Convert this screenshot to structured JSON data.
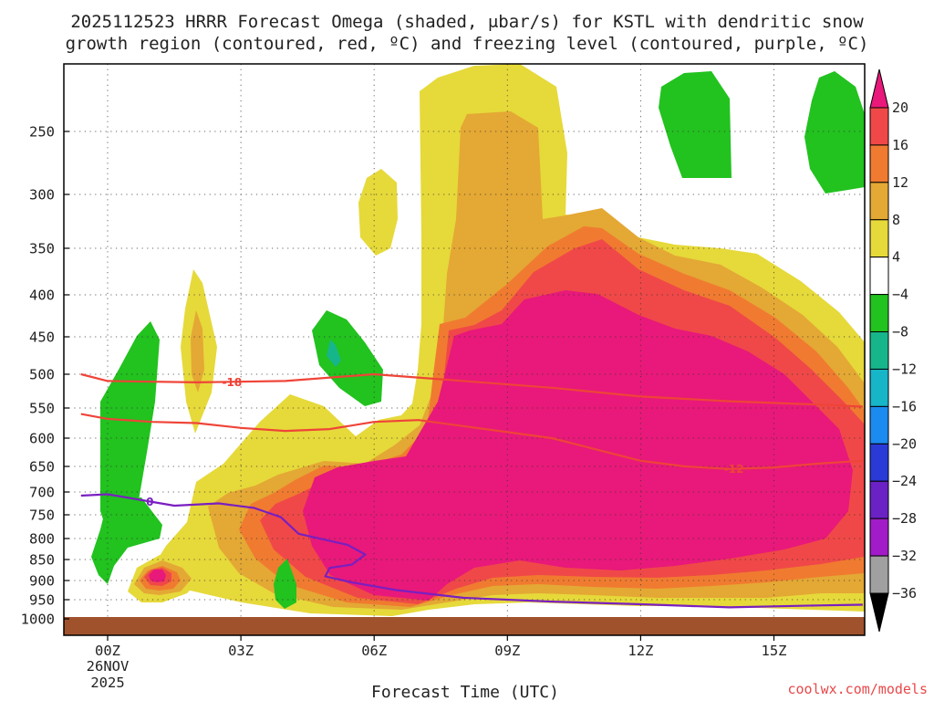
{
  "chart_data": {
    "type": "heatmap",
    "title_line1": "2025112523 HRRR Forecast Omega (shaded, μbar/s) for KSTL with dendritic snow",
    "title_line2": "growth region (contoured, red, ºC) and freezing level (contoured, purple, ºC)",
    "xlabel": "Forecast Time (UTC)",
    "ylabel": "",
    "x_ticks": [
      "00Z",
      "03Z",
      "06Z",
      "09Z",
      "12Z",
      "15Z"
    ],
    "x_tick_hours": [
      0,
      3,
      6,
      9,
      12,
      15
    ],
    "x_date_line1": "26NOV",
    "x_date_line2": "2025",
    "xlim_hours": [
      -0.6,
      17
    ],
    "y_ticks": [
      250,
      300,
      350,
      400,
      450,
      500,
      550,
      600,
      650,
      700,
      750,
      800,
      850,
      900,
      950,
      1000
    ],
    "y_tick_labels": [
      "250",
      "300",
      "350",
      "400",
      "450",
      "500",
      "550",
      "600",
      "650",
      "700",
      "750",
      "800",
      "850",
      "900",
      "950",
      "1000"
    ],
    "ylim_hpa": [
      200,
      1020
    ],
    "grid": true,
    "colorbar": {
      "levels": [
        "20",
        "16",
        "12",
        "8",
        "4",
        "−4",
        "−8",
        "−12",
        "−16",
        "−20",
        "−24",
        "−28",
        "−32",
        "−36"
      ],
      "colors": [
        "#e8197a",
        "#f04848",
        "#f07b30",
        "#e4a834",
        "#e6d93a",
        "#ffffff",
        "#22c21f",
        "#17b68a",
        "#16b6c8",
        "#1c8bef",
        "#2a3ad6",
        "#6a22c4",
        "#a11cc8",
        "#a0a0a0"
      ]
    },
    "omega_colors": {
      "pos4": "#e6d93a",
      "pos8": "#e4a834",
      "pos12": "#f07b30",
      "pos16": "#f04848",
      "pos20": "#e8197a",
      "neg4": "#22c21f",
      "neg8": "#17b68a"
    },
    "red_contours": [
      {
        "label": "-18",
        "points": [
          [
            -0.6,
            500
          ],
          [
            0,
            510
          ],
          [
            2,
            512
          ],
          [
            4,
            510
          ],
          [
            6,
            500
          ],
          [
            8,
            510
          ],
          [
            10,
            520
          ],
          [
            12,
            533
          ],
          [
            14,
            540
          ],
          [
            16,
            545
          ],
          [
            17,
            548
          ]
        ]
      },
      {
        "label": "-12",
        "points": [
          [
            -0.6,
            560
          ],
          [
            0,
            568
          ],
          [
            1,
            573
          ],
          [
            2,
            575
          ],
          [
            3,
            583
          ],
          [
            4,
            588
          ],
          [
            5,
            585
          ],
          [
            6,
            573
          ],
          [
            7,
            570
          ],
          [
            8,
            580
          ],
          [
            9,
            590
          ],
          [
            10,
            600
          ],
          [
            11,
            620
          ],
          [
            12,
            640
          ],
          [
            13,
            650
          ],
          [
            14,
            655
          ],
          [
            15,
            652
          ],
          [
            16,
            645
          ],
          [
            17,
            640
          ]
        ]
      }
    ],
    "purple_contours": [
      {
        "label": "0",
        "points": [
          [
            -0.6,
            708
          ],
          [
            0,
            705
          ],
          [
            0.9,
            720
          ],
          [
            1.5,
            730
          ],
          [
            2.5,
            725
          ],
          [
            3.3,
            735
          ],
          [
            3.9,
            755
          ],
          [
            4.3,
            790
          ],
          [
            5.4,
            815
          ],
          [
            5.8,
            838
          ],
          [
            5.5,
            862
          ],
          [
            5.0,
            870
          ],
          [
            4.9,
            890
          ],
          [
            5.5,
            905
          ],
          [
            6.5,
            925
          ],
          [
            8,
            945
          ],
          [
            10,
            955
          ],
          [
            12,
            962
          ],
          [
            14,
            970
          ],
          [
            16,
            965
          ],
          [
            17,
            963
          ]
        ]
      }
    ],
    "credit": "coolwx.com/models"
  }
}
